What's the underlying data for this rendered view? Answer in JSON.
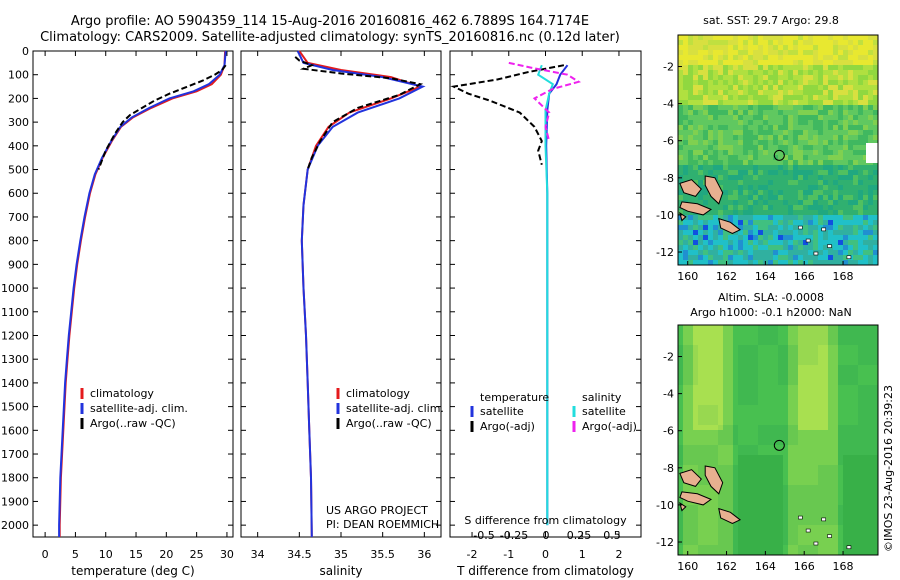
{
  "header": {
    "title_line1": "Argo profile: AO 5904359_114 15-Aug-2016 20160816_462 6.7889S 164.7174E",
    "title_line2": "Climatology: CARS2009. Satellite-adjusted climatology: synTS_20160816.nc (0.12d later)"
  },
  "colors": {
    "climatology": "#e41a1c",
    "satellite": "#2233dd",
    "argo": "#000000",
    "sal_satellite": "#22dddd",
    "sal_argo": "#ee22ee",
    "land": "#e8b090"
  },
  "chart_data": [
    {
      "type": "line",
      "id": "temperature",
      "xlabel": "temperature (deg C)",
      "ylabel": "",
      "xlim": [
        -2,
        31
      ],
      "ylim": [
        2050,
        0
      ],
      "xticks": [
        0,
        5,
        10,
        15,
        20,
        25,
        30
      ],
      "yticks": [
        0,
        100,
        200,
        300,
        400,
        500,
        600,
        700,
        800,
        900,
        1000,
        1100,
        1200,
        1300,
        1400,
        1500,
        1600,
        1700,
        1800,
        1900,
        2000
      ],
      "legend": [
        "climatology",
        "satellite-adj. clim.",
        "Argo(..raw -QC)"
      ],
      "series": [
        {
          "name": "climatology",
          "style": "solid",
          "color": "#e41a1c",
          "points": [
            [
              29.7,
              0
            ],
            [
              29.6,
              60
            ],
            [
              29.0,
              100
            ],
            [
              27.5,
              140
            ],
            [
              25.0,
              170
            ],
            [
              21.0,
              200
            ],
            [
              17.5,
              240
            ],
            [
              14.5,
              280
            ],
            [
              12.5,
              320
            ],
            [
              11.0,
              380
            ],
            [
              9.5,
              450
            ],
            [
              8.3,
              520
            ],
            [
              7.4,
              600
            ],
            [
              6.6,
              700
            ],
            [
              5.9,
              800
            ],
            [
              5.3,
              900
            ],
            [
              4.8,
              1000
            ],
            [
              4.4,
              1100
            ],
            [
              4.0,
              1200
            ],
            [
              3.7,
              1300
            ],
            [
              3.4,
              1400
            ],
            [
              3.2,
              1500
            ],
            [
              3.0,
              1600
            ],
            [
              2.8,
              1700
            ],
            [
              2.6,
              1800
            ],
            [
              2.5,
              1900
            ],
            [
              2.4,
              2000
            ],
            [
              2.4,
              2050
            ]
          ]
        },
        {
          "name": "satellite-adj. clim.",
          "style": "solid",
          "color": "#2233dd",
          "points": [
            [
              29.8,
              0
            ],
            [
              29.6,
              60
            ],
            [
              28.8,
              100
            ],
            [
              27.0,
              140
            ],
            [
              24.5,
              170
            ],
            [
              20.5,
              200
            ],
            [
              17.2,
              240
            ],
            [
              14.3,
              280
            ],
            [
              12.4,
              320
            ],
            [
              10.9,
              380
            ],
            [
              9.4,
              450
            ],
            [
              8.2,
              520
            ],
            [
              7.3,
              600
            ],
            [
              6.5,
              700
            ],
            [
              5.8,
              800
            ],
            [
              5.2,
              900
            ],
            [
              4.7,
              1000
            ],
            [
              4.3,
              1100
            ],
            [
              3.9,
              1200
            ],
            [
              3.6,
              1300
            ],
            [
              3.3,
              1400
            ],
            [
              3.1,
              1500
            ],
            [
              2.9,
              1600
            ],
            [
              2.7,
              1700
            ],
            [
              2.5,
              1800
            ],
            [
              2.4,
              1900
            ],
            [
              2.3,
              2000
            ],
            [
              2.3,
              2050
            ]
          ]
        },
        {
          "name": "Argo(..raw -QC)",
          "style": "dash",
          "color": "#000000",
          "points": [
            [
              29.8,
              60
            ],
            [
              29.2,
              80
            ],
            [
              28.0,
              100
            ],
            [
              26.0,
              125
            ],
            [
              23.5,
              150
            ],
            [
              20.5,
              180
            ],
            [
              18.0,
              210
            ],
            [
              16.0,
              240
            ],
            [
              14.0,
              270
            ],
            [
              12.8,
              300
            ],
            [
              11.5,
              350
            ],
            [
              10.0,
              420
            ],
            [
              8.8,
              500
            ]
          ]
        }
      ]
    },
    {
      "type": "line",
      "id": "salinity",
      "xlabel": "salinity",
      "ylabel": "",
      "xlim": [
        33.8,
        36.2
      ],
      "ylim": [
        2050,
        0
      ],
      "xticks": [
        34,
        34.5,
        35,
        35.5,
        36
      ],
      "legend": [
        "climatology",
        "satellite-adj. clim.",
        "Argo(..raw -QC)"
      ],
      "series": [
        {
          "name": "climatology",
          "style": "solid",
          "color": "#e41a1c",
          "points": [
            [
              34.5,
              0
            ],
            [
              34.6,
              50
            ],
            [
              35.0,
              80
            ],
            [
              35.6,
              110
            ],
            [
              35.95,
              150
            ],
            [
              35.6,
              200
            ],
            [
              35.1,
              260
            ],
            [
              34.85,
              320
            ],
            [
              34.7,
              400
            ],
            [
              34.6,
              500
            ],
            [
              34.55,
              650
            ],
            [
              34.53,
              800
            ],
            [
              34.55,
              1000
            ],
            [
              34.58,
              1200
            ],
            [
              34.6,
              1400
            ],
            [
              34.62,
              1600
            ],
            [
              34.64,
              1800
            ],
            [
              34.65,
              2050
            ]
          ]
        },
        {
          "name": "satellite-adj. clim.",
          "style": "solid",
          "color": "#2233dd",
          "points": [
            [
              34.48,
              0
            ],
            [
              34.55,
              50
            ],
            [
              34.9,
              80
            ],
            [
              35.5,
              110
            ],
            [
              35.98,
              150
            ],
            [
              35.7,
              200
            ],
            [
              35.2,
              260
            ],
            [
              34.9,
              320
            ],
            [
              34.72,
              400
            ],
            [
              34.6,
              500
            ],
            [
              34.55,
              650
            ],
            [
              34.53,
              800
            ],
            [
              34.55,
              1000
            ],
            [
              34.58,
              1200
            ],
            [
              34.6,
              1400
            ],
            [
              34.62,
              1600
            ],
            [
              34.64,
              1800
            ],
            [
              34.65,
              2050
            ]
          ]
        },
        {
          "name": "Argo(..raw -QC)",
          "style": "dash",
          "color": "#000000",
          "points": [
            [
              34.45,
              25
            ],
            [
              34.5,
              40
            ],
            [
              34.65,
              60
            ],
            [
              34.55,
              75
            ],
            [
              35.0,
              95
            ],
            [
              35.6,
              115
            ],
            [
              35.95,
              140
            ],
            [
              35.7,
              185
            ],
            [
              35.2,
              240
            ],
            [
              34.9,
              300
            ],
            [
              34.75,
              380
            ],
            [
              34.65,
              450
            ],
            [
              34.6,
              500
            ]
          ]
        }
      ]
    },
    {
      "type": "line",
      "id": "difference",
      "xlabel": "T difference from climatology",
      "second_xlabel": "S difference from climatology",
      "xlim": [
        -2.6,
        2.6
      ],
      "ylim": [
        2050,
        0
      ],
      "xticks": [
        -2,
        -1,
        0,
        1,
        2
      ],
      "top_xticks": [
        "-0.5",
        "-0.25",
        "0",
        "0.25",
        "0.5"
      ],
      "legend_temperature_title": "temperature",
      "legend_salinity_title": "salinity",
      "legend": [
        "satellite",
        "Argo(-adj)",
        "satellite",
        "Argo(-adj)"
      ],
      "series": [
        {
          "name": "temperature satellite",
          "style": "solid",
          "color": "#2233dd",
          "points": [
            [
              0.6,
              60
            ],
            [
              0.4,
              100
            ],
            [
              0.3,
              140
            ],
            [
              0.1,
              180
            ],
            [
              0.05,
              250
            ],
            [
              0.02,
              400
            ],
            [
              0.05,
              600
            ],
            [
              0.05,
              1000
            ],
            [
              0.05,
              1500
            ],
            [
              0.05,
              2000
            ]
          ]
        },
        {
          "name": "temperature Argo(-adj)",
          "style": "dash",
          "color": "#000000",
          "points": [
            [
              0.5,
              60
            ],
            [
              -0.5,
              90
            ],
            [
              -1.3,
              120
            ],
            [
              -2.5,
              150
            ],
            [
              -2.1,
              180
            ],
            [
              -1.5,
              210
            ],
            [
              -0.7,
              260
            ],
            [
              -0.3,
              320
            ],
            [
              -0.1,
              380
            ],
            [
              -0.2,
              420
            ],
            [
              -0.1,
              480
            ]
          ]
        },
        {
          "name": "salinity satellite",
          "style": "solid",
          "color": "#22dddd",
          "points": [
            [
              -0.1,
              60
            ],
            [
              -0.2,
              100
            ],
            [
              0.2,
              140
            ],
            [
              0.1,
              180
            ],
            [
              0.0,
              250
            ],
            [
              0.0,
              400
            ],
            [
              0.05,
              600
            ],
            [
              0.05,
              1000
            ],
            [
              0.05,
              1500
            ],
            [
              0.05,
              2000
            ]
          ]
        },
        {
          "name": "salinity Argo(-adj)",
          "style": "dash",
          "color": "#ee22ee",
          "points": [
            [
              -1.0,
              50
            ],
            [
              -0.4,
              70
            ],
            [
              0.6,
              100
            ],
            [
              0.9,
              130
            ],
            [
              0.2,
              160
            ],
            [
              -0.3,
              200
            ],
            [
              0.1,
              260
            ],
            [
              0.0,
              320
            ],
            [
              0.1,
              380
            ]
          ]
        }
      ]
    },
    {
      "type": "heatmap",
      "id": "sst_map",
      "title": "sat. SST: 29.7 Argo: 29.8",
      "xlim": [
        159.5,
        169.8
      ],
      "ylim": [
        -12.7,
        -0.3
      ],
      "xticks": [
        160,
        162,
        164,
        166,
        168
      ],
      "yticks": [
        -2,
        -4,
        -6,
        -8,
        -10,
        -12
      ],
      "marker": [
        164.7174,
        -6.7889
      ]
    },
    {
      "type": "heatmap",
      "id": "sla_map",
      "title_line1": "Altim. SLA: -0.0008",
      "title_line2": "Argo h1000: -0.1 h2000: NaN",
      "xlim": [
        159.5,
        169.8
      ],
      "ylim": [
        -12.7,
        -0.3
      ],
      "xticks": [
        160,
        162,
        164,
        166,
        168
      ],
      "yticks": [
        -2,
        -4,
        -6,
        -8,
        -10,
        -12
      ],
      "marker": [
        164.7174,
        -6.7889
      ]
    }
  ],
  "notes": {
    "project_line1": "US ARGO PROJECT",
    "project_line2": "PI: DEAN ROEMMICH",
    "imos_stamp": "©IMOS 23-Aug-2016 20:39:23"
  }
}
